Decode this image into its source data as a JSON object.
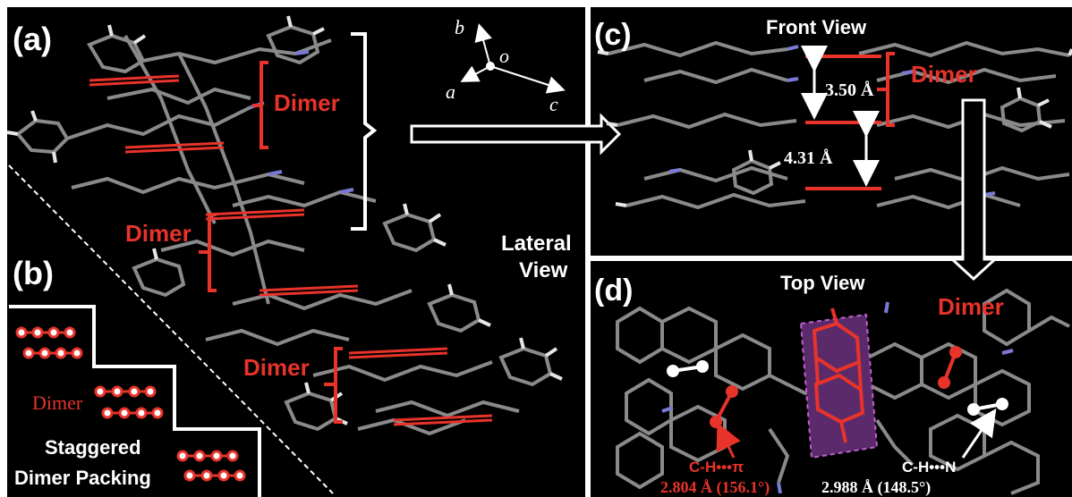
{
  "panels": {
    "a": {
      "tag": "(a)"
    },
    "b": {
      "tag": "(b)"
    },
    "c": {
      "tag": "(c)",
      "title": "Front View"
    },
    "d": {
      "tag": "(d)",
      "title": "Top View"
    }
  },
  "axes": {
    "b": "b",
    "o": "o",
    "a": "a",
    "c": "c"
  },
  "labels": {
    "dimer": "Dimer",
    "lateral_line1": "Lateral",
    "lateral_line2": "View",
    "staggered_line1": "Staggered",
    "staggered_line2": "Dimer Packing",
    "dist_350": "3.50 Å",
    "dist_431": "4.31 Å",
    "ch_pi": "C-H•••π",
    "ch_pi_val": "2.804 Å (156.1°)",
    "ch_n": "C-H•••N",
    "ch_n_val": "2.988 Å (148.5°)"
  },
  "colors": {
    "background": "#000000",
    "accent_red": "#e8332a",
    "bond_gray": "#8a8a8a",
    "hydrogen": "#e6e6e6",
    "nitrogen": "#7a7ad6",
    "highlight": "#5a2a6a"
  }
}
